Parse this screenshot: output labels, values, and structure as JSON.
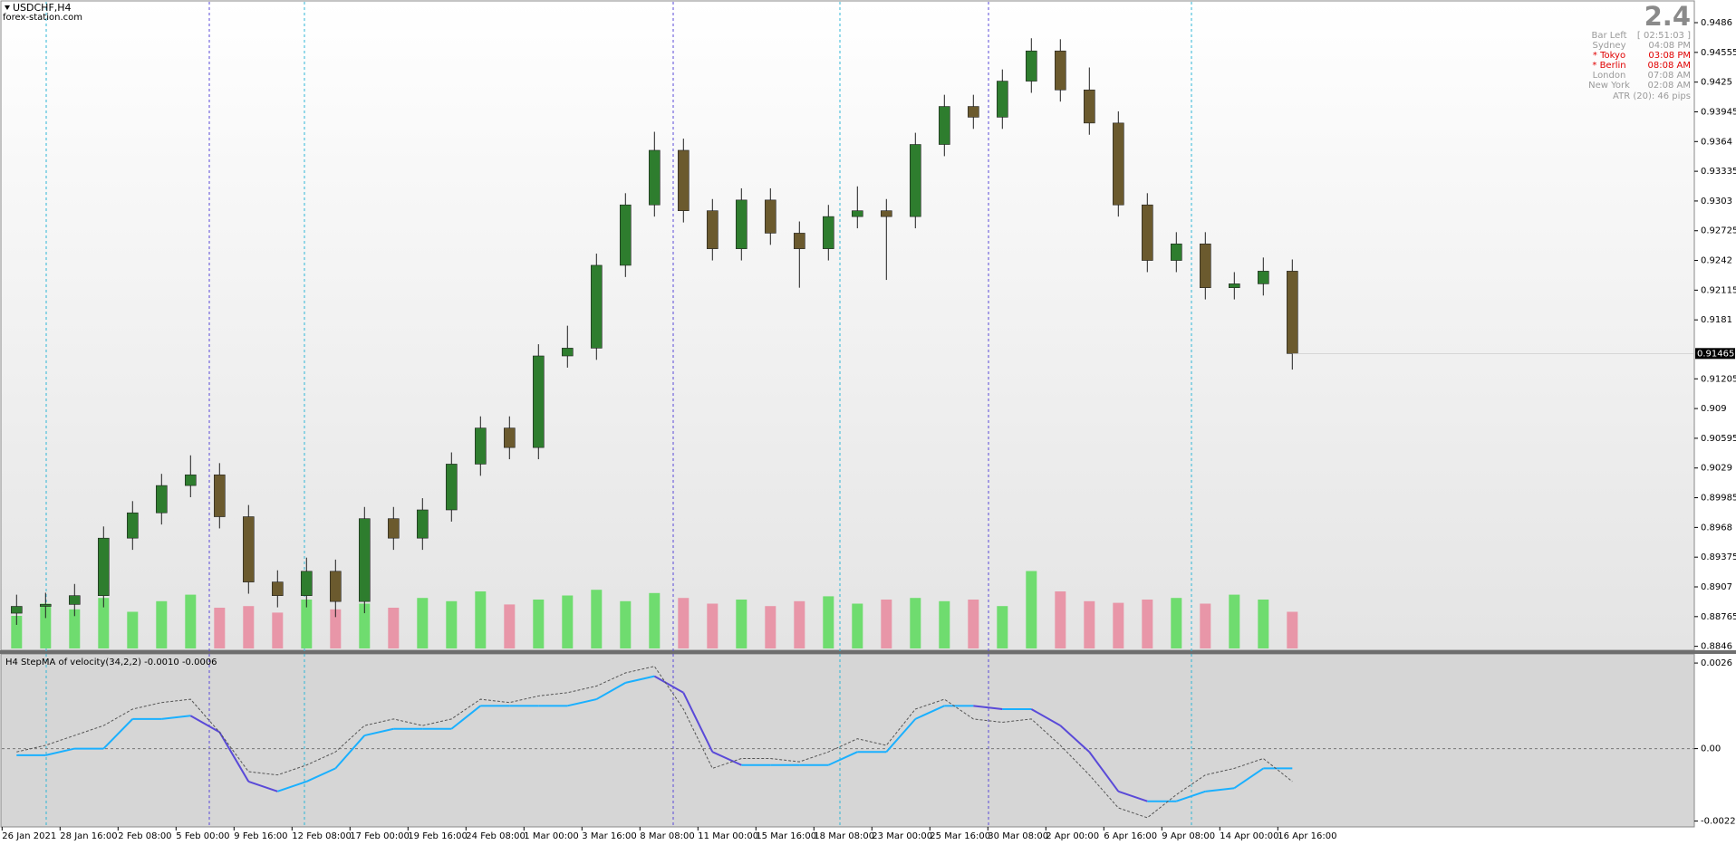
{
  "header": {
    "symbol": "USDCHF,H4",
    "site": "forex-station.com"
  },
  "info_panel": {
    "value": "2.4",
    "rows": [
      {
        "label": "Bar Left",
        "time": "[ 02:51:03 ]",
        "color": "#9a9a9a"
      },
      {
        "label": "Sydney",
        "time": "04:08 PM",
        "color": "#9a9a9a"
      },
      {
        "label": "* Tokyo",
        "time": "03:08 PM",
        "color": "#e00000"
      },
      {
        "label": "* Berlin",
        "time": "08:08 AM",
        "color": "#e00000"
      },
      {
        "label": "London",
        "time": "07:08 AM",
        "color": "#9a9a9a"
      },
      {
        "label": "New York",
        "time": "02:08 AM",
        "color": "#9a9a9a"
      }
    ],
    "atr": "ATR (20): 46 pips"
  },
  "chart_data": [
    {
      "type": "candlestick",
      "categories": [
        "26 Jan 2021",
        null,
        "28 Jan 16:00",
        null,
        "2 Feb 08:00",
        null,
        "5 Feb 00:00",
        null,
        "9 Feb 16:00",
        null,
        "12 Feb 08:00",
        null,
        "17 Feb 00:00",
        null,
        "19 Feb 16:00",
        null,
        "24 Feb 08:00",
        null,
        "1 Mar 00:00",
        null,
        "3 Mar 16:00",
        null,
        "8 Mar 08:00",
        null,
        "11 Mar 00:00",
        null,
        "15 Mar 16:00",
        null,
        "18 Mar 08:00",
        null,
        "23 Mar 00:00",
        null,
        "25 Mar 16:00",
        null,
        "30 Mar 08:00",
        null,
        "2 Apr 00:00",
        null,
        "6 Apr 16:00",
        null,
        "9 Apr 08:00",
        null,
        "14 Apr 00:00",
        null,
        "16 Apr 16:00"
      ],
      "open": [
        0.888,
        0.8887,
        0.8889,
        0.8898,
        0.8957,
        0.8983,
        0.9011,
        0.9022,
        0.8979,
        0.8912,
        0.8898,
        0.8923,
        0.8892,
        0.8977,
        0.8957,
        0.8986,
        0.9033,
        0.907,
        0.905,
        0.9144,
        0.9152,
        0.9237,
        0.9299,
        0.9355,
        0.9293,
        0.9254,
        0.9304,
        0.927,
        0.9254,
        0.9287,
        0.9293,
        0.9287,
        0.9361,
        0.94,
        0.9389,
        0.9426,
        0.9457,
        0.9417,
        0.9383,
        0.9299,
        0.9242,
        0.9259,
        0.9214,
        0.9218,
        0.9231
      ],
      "high": [
        0.8899,
        0.8901,
        0.891,
        0.8969,
        0.8995,
        0.9023,
        0.9042,
        0.9034,
        0.8991,
        0.8924,
        0.8937,
        0.8935,
        0.8989,
        0.8989,
        0.8998,
        0.9045,
        0.9082,
        0.9082,
        0.9156,
        0.9175,
        0.9249,
        0.9311,
        0.9374,
        0.9367,
        0.9305,
        0.9316,
        0.9316,
        0.9282,
        0.9299,
        0.9318,
        0.9305,
        0.9373,
        0.9412,
        0.9412,
        0.9438,
        0.947,
        0.9469,
        0.944,
        0.9395,
        0.9311,
        0.9271,
        0.9271,
        0.923,
        0.9245,
        0.9243
      ],
      "low": [
        0.8868,
        0.8875,
        0.8877,
        0.8886,
        0.8945,
        0.8971,
        0.8999,
        0.8967,
        0.89,
        0.8886,
        0.8886,
        0.8876,
        0.888,
        0.8945,
        0.8945,
        0.8974,
        0.9021,
        0.9038,
        0.9038,
        0.9132,
        0.914,
        0.9225,
        0.9287,
        0.9281,
        0.9242,
        0.9242,
        0.9258,
        0.9214,
        0.9242,
        0.9275,
        0.9222,
        0.9275,
        0.9349,
        0.9377,
        0.9377,
        0.9414,
        0.9405,
        0.9371,
        0.9287,
        0.923,
        0.923,
        0.9202,
        0.9202,
        0.9206,
        0.913
      ],
      "close": [
        0.8887,
        0.8889,
        0.8898,
        0.8957,
        0.8983,
        0.9011,
        0.9022,
        0.8979,
        0.8912,
        0.8898,
        0.8923,
        0.8892,
        0.8977,
        0.8957,
        0.8986,
        0.9033,
        0.907,
        0.905,
        0.9144,
        0.9152,
        0.9237,
        0.9299,
        0.9355,
        0.9293,
        0.9254,
        0.9304,
        0.927,
        0.9254,
        0.9287,
        0.9293,
        0.9287,
        0.9361,
        0.94,
        0.9389,
        0.9426,
        0.9457,
        0.9417,
        0.9383,
        0.9299,
        0.9242,
        0.9259,
        0.9214,
        0.9218,
        0.9231,
        0.91465
      ],
      "volume": [
        40,
        55,
        48,
        62,
        45,
        58,
        66,
        50,
        52,
        44,
        60,
        48,
        55,
        50,
        62,
        58,
        70,
        54,
        60,
        65,
        72,
        58,
        68,
        62,
        55,
        60,
        52,
        58,
        64,
        55,
        60,
        62,
        58,
        60,
        52,
        95,
        70,
        58,
        56,
        60,
        62,
        55,
        66,
        60,
        45
      ],
      "up_color": "#2e7d2e",
      "down_color": "#6b5a2e",
      "volume_up_color": "#6fdc6f",
      "volume_down_color": "#e896a8",
      "last_price": 0.91465,
      "ylim": [
        0.88438,
        0.95074
      ],
      "yticks": [
        0.9486,
        0.94555,
        0.9425,
        0.93945,
        0.9364,
        0.93335,
        0.9303,
        0.92725,
        0.9242,
        0.92115,
        0.9181,
        0.91205,
        0.909,
        0.90595,
        0.9029,
        0.89985,
        0.8968,
        0.89375,
        0.8907,
        0.88765,
        0.8846
      ]
    },
    {
      "type": "line",
      "title": "H4 StepMA of velocity(34,2,2) -0.0010 -0.0006",
      "series": [
        {
          "name": "StepMA",
          "color": "#1ab0ff",
          "down_color": "#5a4ad8",
          "style": "solid",
          "values": [
            -0.0002,
            -0.0002,
            0.0,
            0.0,
            0.0009,
            0.0009,
            0.001,
            0.0005,
            -0.001,
            -0.0013,
            -0.001,
            -0.0006,
            0.0004,
            0.0006,
            0.0006,
            0.0006,
            0.0013,
            0.0013,
            0.0013,
            0.0013,
            0.0015,
            0.002,
            0.0022,
            0.0017,
            -0.0001,
            -0.0005,
            -0.0005,
            -0.0005,
            -0.0005,
            -0.0001,
            -0.0001,
            0.0009,
            0.0013,
            0.0013,
            0.0012,
            0.0012,
            0.0007,
            -0.0001,
            -0.0013,
            -0.0016,
            -0.0016,
            -0.0013,
            -0.0012,
            -0.0006,
            -0.0006
          ]
        },
        {
          "name": "velocity",
          "color": "#555555",
          "style": "dashed",
          "values": [
            -0.0001,
            0.0001,
            0.0004,
            0.0007,
            0.0012,
            0.0014,
            0.0015,
            0.0005,
            -0.0007,
            -0.0008,
            -0.0005,
            -0.0001,
            0.0007,
            0.0009,
            0.0007,
            0.0009,
            0.0015,
            0.0014,
            0.0016,
            0.0017,
            0.0019,
            0.0023,
            0.0025,
            0.0012,
            -0.0006,
            -0.0003,
            -0.0003,
            -0.0004,
            -0.0001,
            0.0003,
            0.0001,
            0.0012,
            0.0015,
            0.0009,
            0.0008,
            0.0009,
            0.0001,
            -0.0008,
            -0.0018,
            -0.0021,
            -0.0014,
            -0.0008,
            -0.0006,
            -0.0003,
            -0.001
          ]
        }
      ],
      "ylim": [
        -0.00235,
        0.00285
      ],
      "yticks": [
        0.0026,
        {
          "value": 0,
          "label": "0.00"
        },
        -0.0022
      ]
    }
  ]
}
